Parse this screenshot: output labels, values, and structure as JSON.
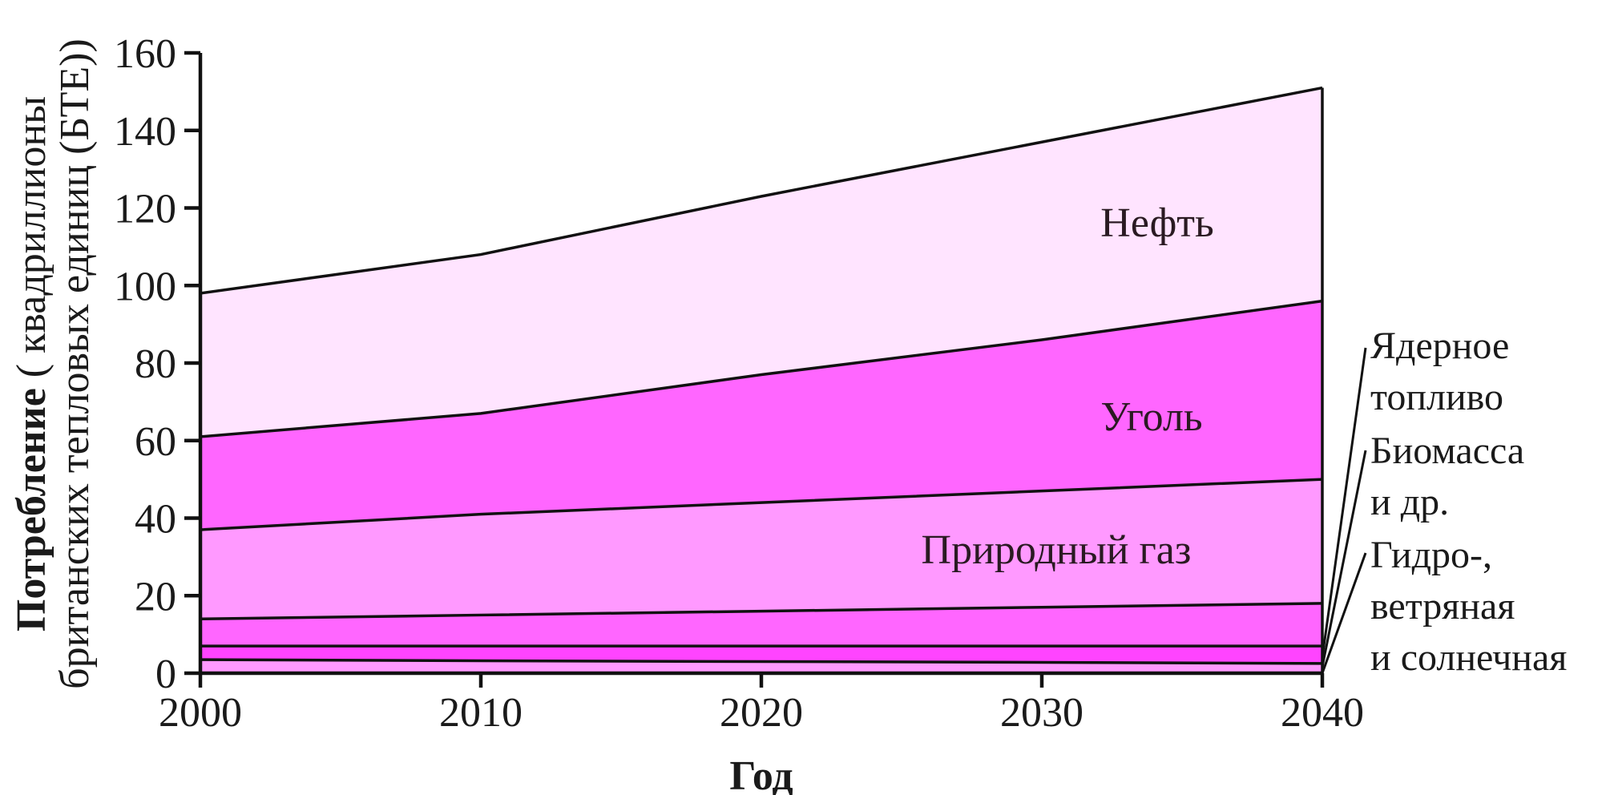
{
  "chart_data": {
    "type": "area",
    "stacked": true,
    "xlabel": "Год",
    "ylabel_bold": "Потребление",
    "ylabel_rest_line1": " ( квадриллионы",
    "ylabel_line2": "британских тепловых единиц (БТЕ))",
    "x": [
      2000,
      2010,
      2020,
      2030,
      2040
    ],
    "xlim": [
      2000,
      2040
    ],
    "ylim": [
      0,
      160
    ],
    "xticks": [
      "2000",
      "2010",
      "2020",
      "2030",
      "2040"
    ],
    "yticks": [
      "0",
      "20",
      "40",
      "60",
      "80",
      "100",
      "120",
      "140",
      "160"
    ],
    "grid": false,
    "series": [
      {
        "name": "Гидро-, ветряная и солнечная",
        "values": [
          3.5,
          3.2,
          3.0,
          2.8,
          2.5
        ],
        "color": "#ff99ff"
      },
      {
        "name": "Биомасса и др.",
        "values": [
          3.5,
          3.8,
          4.0,
          4.2,
          4.5
        ],
        "color": "#ff44ff"
      },
      {
        "name": "Ядерное топливо",
        "values": [
          7,
          8,
          9,
          10,
          11
        ],
        "color": "#ff66ff"
      },
      {
        "name": "Природный газ",
        "values": [
          23,
          26,
          28,
          30,
          32
        ],
        "color": "#ff99ff"
      },
      {
        "name": "Уголь",
        "values": [
          24,
          26,
          33,
          39,
          46
        ],
        "color": "#ff66ff"
      },
      {
        "name": "Нефть",
        "values": [
          37,
          41,
          46,
          51,
          55
        ],
        "color": "#ffe4ff"
      }
    ],
    "annotations": {
      "neft": "Нефть",
      "ugol": "Уголь",
      "gas": "Природный газ",
      "nuclear_line1": "Ядерное",
      "nuclear_line2": "топливо",
      "biomass_line1": "Биомасса",
      "biomass_line2": "и др.",
      "hydro_line1": "Гидро-,",
      "hydro_line2": "ветряная",
      "hydro_line3": "и солнечная"
    }
  }
}
